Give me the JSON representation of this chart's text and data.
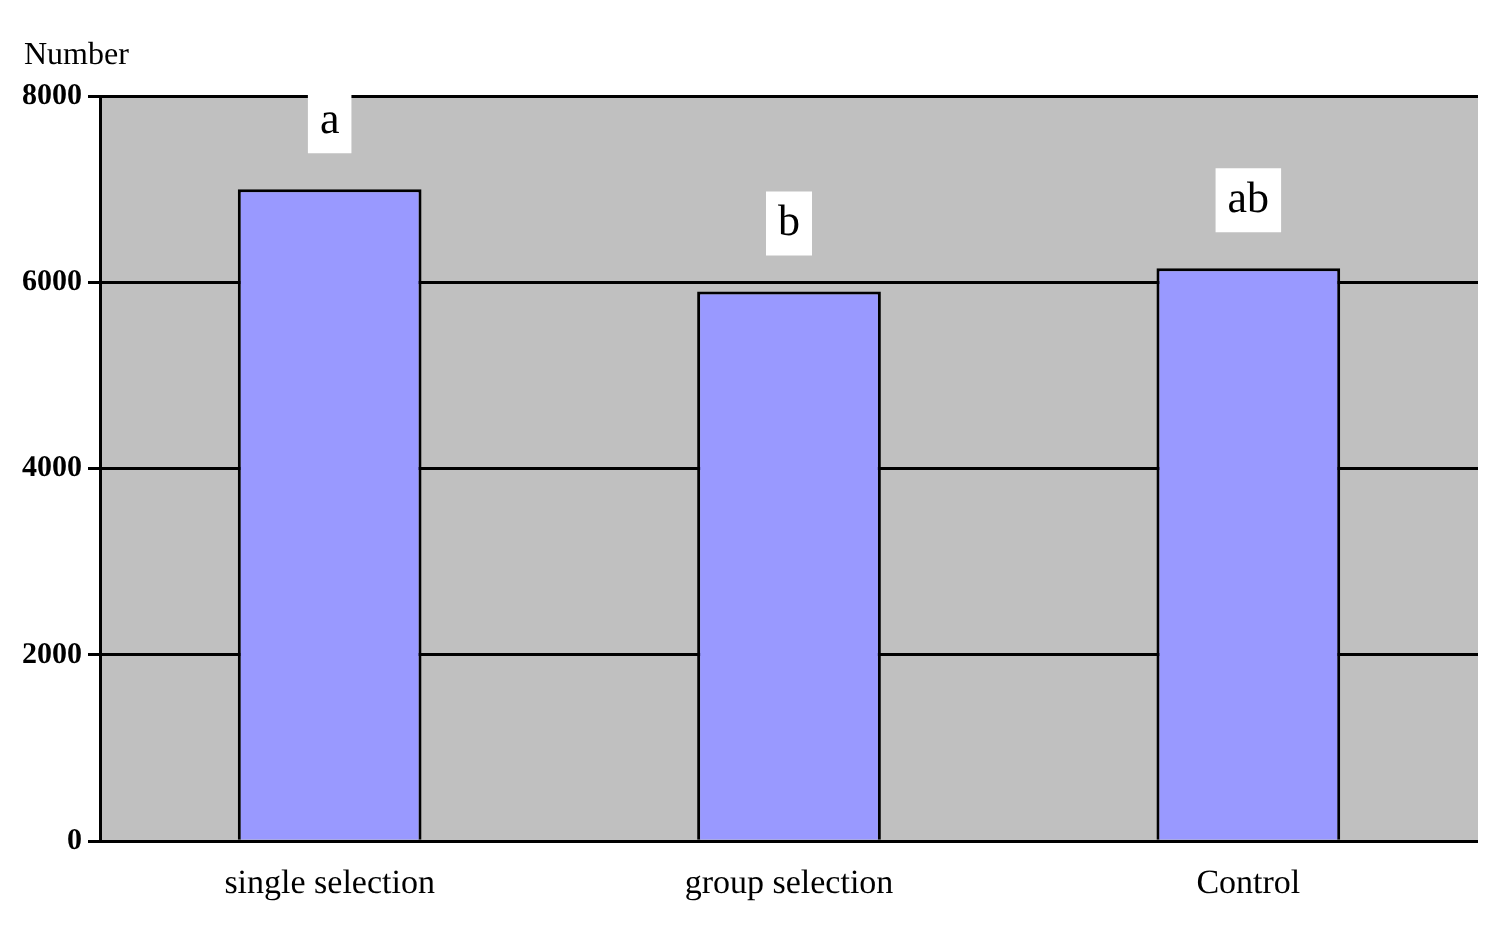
{
  "chart_data": {
    "type": "bar",
    "ylabel": "Number",
    "categories": [
      "single selection",
      "group selection",
      "Control"
    ],
    "values": [
      7000,
      5900,
      6150
    ],
    "color": "#9999ff",
    "ylim": [
      0,
      8000
    ],
    "yticks": [
      0,
      2000,
      4000,
      6000,
      8000
    ],
    "grid": "y",
    "legend": false,
    "annotations": [
      {
        "text": "a",
        "x": "single selection",
        "y": 7000
      },
      {
        "text": "b",
        "x": "group selection",
        "y": 5900
      },
      {
        "text": "ab",
        "x": "Control",
        "y": 6150
      }
    ]
  }
}
